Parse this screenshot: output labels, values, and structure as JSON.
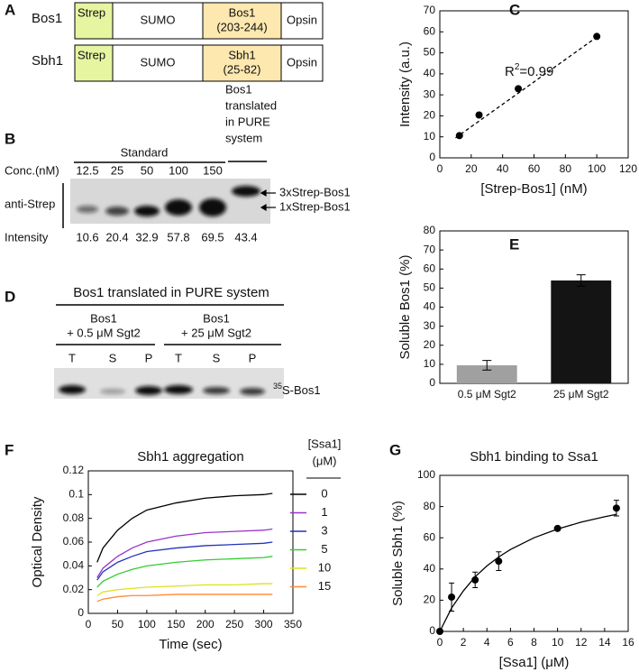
{
  "panel_labels": [
    "A",
    "B",
    "C",
    "D",
    "E",
    "F",
    "G"
  ],
  "constructs": {
    "rows": [
      {
        "name": "Bos1",
        "segments": [
          [
            "Strep"
          ],
          [
            "SUMO"
          ],
          [
            "Bos1",
            "(203-244)"
          ],
          [
            "Opsin"
          ]
        ]
      },
      {
        "name": "Sbh1",
        "segments": [
          [
            "Strep"
          ],
          [
            "SUMO"
          ],
          [
            "Sbh1",
            "(25-82)"
          ],
          [
            "Opsin"
          ]
        ]
      }
    ]
  },
  "blot_b": {
    "side_title": [
      "Bos1",
      "translated",
      "in PURE",
      "system"
    ],
    "standard": "Standard",
    "conc_label": "Conc.(nM)",
    "conc": [
      12.5,
      25,
      50,
      100,
      150
    ],
    "antibody": "anti-Strep",
    "bands": [
      "3xStrep-Bos1",
      "1xStrep-Bos1"
    ],
    "intensity_label": "Intensity",
    "intensity": [
      10.6,
      20.4,
      32.9,
      57.8,
      69.5,
      43.4
    ]
  },
  "blot_d": {
    "title": "Bos1 translated in PURE system",
    "groups": [
      {
        "name": "Bos1",
        "condition": "+ 0.5 μM Sgt2"
      },
      {
        "name": "Bos1",
        "condition": "+ 25 μM Sgt2"
      }
    ],
    "lanes": [
      "T",
      "S",
      "P",
      "T",
      "S",
      "P"
    ],
    "band_sup": "35",
    "band": "S-Bos1"
  },
  "chart_data": [
    {
      "type": "scatter",
      "x_label": "[Strep-Bos1] (nM)",
      "y_label": "Intensity (a.u.)",
      "x": [
        12.5,
        25,
        50,
        100
      ],
      "values": [
        10.6,
        20.4,
        32.9,
        57.8
      ],
      "color": "#000000",
      "xlim": [
        0,
        120
      ],
      "xticks": [
        0,
        20,
        40,
        60,
        80,
        100,
        120
      ],
      "ylim": [
        0,
        70
      ],
      "yticks": [
        0,
        10,
        20,
        30,
        40,
        50,
        60,
        70
      ],
      "fit": {
        "x": [
          10,
          100
        ],
        "values": [
          9.5,
          57.5
        ]
      },
      "annotation": {
        "base": "R",
        "sup": "2",
        "rest": "=0.99"
      }
    },
    {
      "type": "bar",
      "y_label": "Soluble Bos1 (%)",
      "categories": [
        "0.5 μM Sgt2",
        "25 μM Sgt2"
      ],
      "values": [
        9.5,
        54
      ],
      "errors": [
        2.5,
        3
      ],
      "colors": [
        "#a0a0a0",
        "#141414"
      ],
      "ylim": [
        0,
        80
      ],
      "yticks": [
        0,
        10,
        20,
        30,
        40,
        50,
        60,
        70,
        80
      ]
    },
    {
      "type": "line",
      "title": "Sbh1 aggregation",
      "x_label": "Time (sec)",
      "y_label": "Optical Density",
      "legend_title": [
        "[Ssa1]",
        "(μM)"
      ],
      "x": [
        15,
        25,
        50,
        75,
        100,
        150,
        200,
        250,
        300,
        315
      ],
      "series": [
        {
          "name": "0",
          "color": "#000000",
          "values": [
            0.043,
            0.055,
            0.07,
            0.08,
            0.087,
            0.093,
            0.097,
            0.099,
            0.1,
            0.101
          ]
        },
        {
          "name": "1",
          "color": "#9933cc",
          "values": [
            0.03,
            0.038,
            0.048,
            0.055,
            0.06,
            0.065,
            0.068,
            0.069,
            0.07,
            0.071
          ]
        },
        {
          "name": "3",
          "color": "#2233bb",
          "values": [
            0.028,
            0.035,
            0.043,
            0.048,
            0.052,
            0.055,
            0.057,
            0.058,
            0.059,
            0.06
          ]
        },
        {
          "name": "5",
          "color": "#33cc33",
          "values": [
            0.022,
            0.027,
            0.033,
            0.037,
            0.04,
            0.043,
            0.045,
            0.046,
            0.047,
            0.048
          ]
        },
        {
          "name": "10",
          "color": "#e0e020",
          "values": [
            0.015,
            0.018,
            0.02,
            0.021,
            0.022,
            0.023,
            0.024,
            0.024,
            0.025,
            0.025
          ]
        },
        {
          "name": "15",
          "color": "#ff8833",
          "values": [
            0.01,
            0.012,
            0.014,
            0.015,
            0.015,
            0.016,
            0.016,
            0.016,
            0.016,
            0.016
          ]
        }
      ],
      "xlim": [
        0,
        350
      ],
      "xticks": [
        0,
        50,
        100,
        150,
        200,
        250,
        300,
        350
      ],
      "ylim": [
        0,
        0.12
      ],
      "yticks": [
        0,
        0.02,
        0.04,
        0.06,
        0.08,
        0.1,
        0.12
      ]
    },
    {
      "type": "scatter",
      "title": "Sbh1 binding to Ssa1",
      "x_label": "[Ssa1] (μM)",
      "y_label": "Soluble Sbh1 (%)",
      "x": [
        0,
        1,
        3,
        5,
        10,
        15
      ],
      "values": [
        0,
        22,
        33,
        45,
        66,
        79
      ],
      "errors": [
        0,
        9,
        5,
        6,
        1,
        5
      ],
      "color": "#000000",
      "xlim": [
        0,
        16
      ],
      "xticks": [
        0,
        2,
        4,
        6,
        8,
        10,
        12,
        14,
        16
      ],
      "ylim": [
        0,
        100
      ],
      "yticks": [
        0,
        20,
        40,
        60,
        80,
        100
      ],
      "fit": {
        "x": [
          0,
          1,
          2,
          3,
          4,
          5,
          6,
          8,
          10,
          12,
          14,
          15
        ],
        "values": [
          0,
          15,
          26,
          35,
          42,
          47.7,
          52.5,
          60,
          65.6,
          70,
          73.5,
          75
        ]
      }
    }
  ]
}
